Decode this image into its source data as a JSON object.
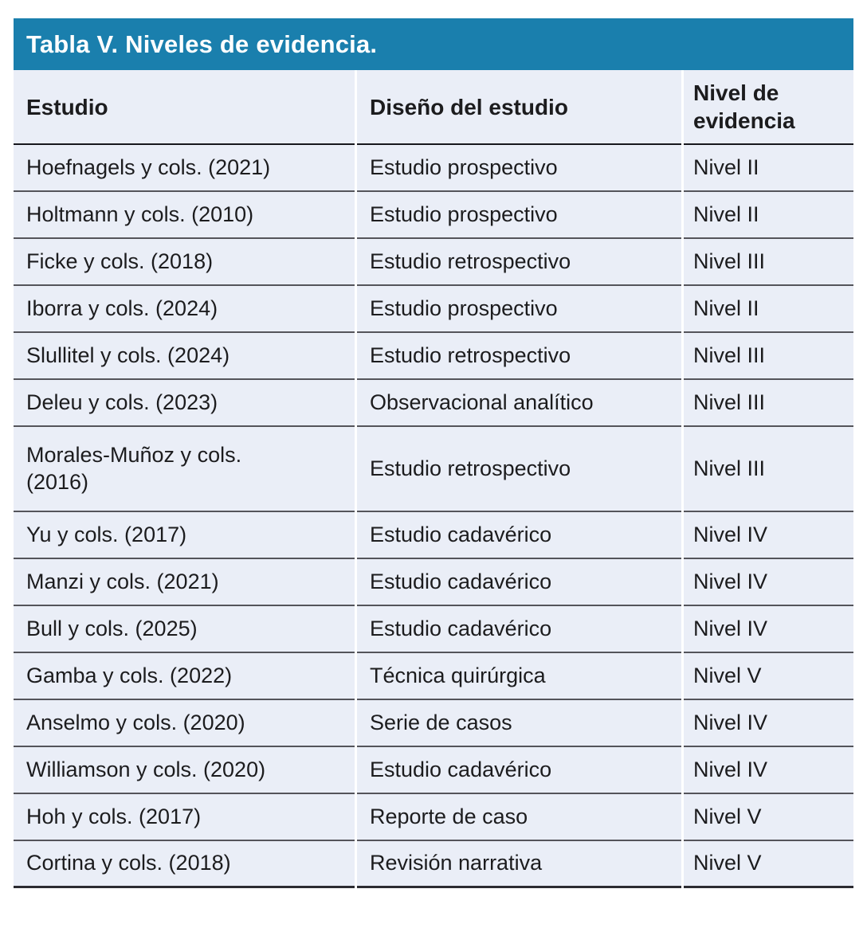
{
  "table": {
    "title": "Tabla V. Niveles de evidencia.",
    "columns": [
      "Estudio",
      "Diseño del estudio",
      "Nivel de evidencia"
    ],
    "rows": [
      {
        "estudio": "Hoefnagels y cols. (2021)",
        "diseno": "Estudio prospectivo",
        "nivel": "Nivel II"
      },
      {
        "estudio": "Holtmann y cols. (2010)",
        "diseno": "Estudio prospectivo",
        "nivel": "Nivel II"
      },
      {
        "estudio": "Ficke y cols. (2018)",
        "diseno": "Estudio retrospectivo",
        "nivel": "Nivel III"
      },
      {
        "estudio": "Iborra y cols. (2024)",
        "diseno": "Estudio prospectivo",
        "nivel": "Nivel II"
      },
      {
        "estudio": "Slullitel y cols. (2024)",
        "diseno": "Estudio retrospectivo",
        "nivel": "Nivel III"
      },
      {
        "estudio": "Deleu y cols. (2023)",
        "diseno": "Observacional analítico",
        "nivel": "Nivel III"
      },
      {
        "estudio": "Morales-Muñoz y cols.\n(2016)",
        "diseno": "Estudio retrospectivo",
        "nivel": "Nivel III"
      },
      {
        "estudio": "Yu y cols. (2017)",
        "diseno": "Estudio cadavérico",
        "nivel": "Nivel IV"
      },
      {
        "estudio": "Manzi y cols. (2021)",
        "diseno": "Estudio cadavérico",
        "nivel": "Nivel IV"
      },
      {
        "estudio": "Bull y cols. (2025)",
        "diseno": "Estudio cadavérico",
        "nivel": "Nivel IV"
      },
      {
        "estudio": "Gamba y cols. (2022)",
        "diseno": "Técnica quirúrgica",
        "nivel": "Nivel V"
      },
      {
        "estudio": "Anselmo y cols. (2020)",
        "diseno": "Serie de casos",
        "nivel": "Nivel IV"
      },
      {
        "estudio": "Williamson y cols. (2020)",
        "diseno": "Estudio cadavérico",
        "nivel": "Nivel IV"
      },
      {
        "estudio": "Hoh y cols. (2017)",
        "diseno": "Reporte de caso",
        "nivel": "Nivel V"
      },
      {
        "estudio": "Cortina y cols. (2018)",
        "diseno": "Revisión narrativa",
        "nivel": "Nivel V"
      }
    ]
  },
  "colors": {
    "accent_teal": "#1a7fad",
    "row_background": "#eaeef7",
    "rule_dark": "#17171c"
  }
}
